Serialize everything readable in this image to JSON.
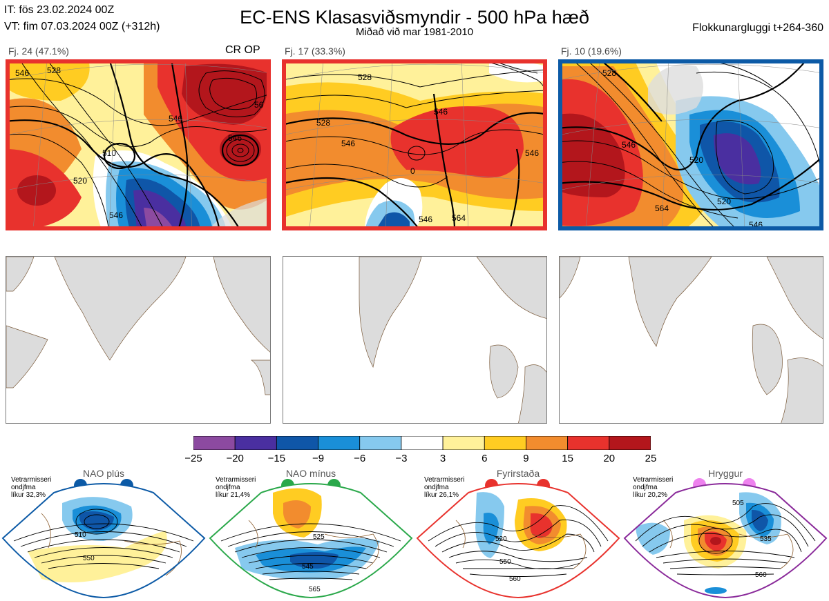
{
  "header": {
    "it_line": "IT: fös 23.02.2024 00Z",
    "vt_line": "VT: fim 07.03.2024 00Z  (+312h)",
    "title": "EC-ENS Klasasviðsmyndir - 500 hPa hæð",
    "subtitle": "Miðað við mar 1981-2010",
    "window": "Flokkunargluggi t+264-360"
  },
  "clusters": [
    {
      "label": "Fj. 24 (47.1%)",
      "border_color": "#e8322d",
      "flag": "CR OP",
      "contour_labels": [
        "528",
        "546",
        "510",
        "520",
        "546",
        "546",
        "546",
        "56"
      ]
    },
    {
      "label": "Fj. 17 (33.3%)",
      "border_color": "#e8322d",
      "flag": "",
      "contour_labels": [
        "528",
        "546",
        "528",
        "546",
        "546",
        "546",
        "564",
        "0"
      ]
    },
    {
      "label": "Fj. 10 (19.6%)",
      "border_color": "#0c5aa6",
      "flag": "",
      "contour_labels": [
        "528",
        "546",
        "520",
        "520",
        "564",
        "546"
      ]
    }
  ],
  "colorbar": {
    "ticks": [
      "−25",
      "−20",
      "−15",
      "−9",
      "−6",
      "−3",
      "3",
      "6",
      "9",
      "15",
      "20",
      "25"
    ],
    "colors": [
      "#8c4aa0",
      "#4a2fa0",
      "#0f56a8",
      "#1a8fd8",
      "#86c9ee",
      "#ffffff",
      "#fff19a",
      "#ffcc22",
      "#f28c2e",
      "#e8322d",
      "#b3161c"
    ]
  },
  "regimes": [
    {
      "name": "NAO plús",
      "note_line1": "Vetrarmisseri",
      "note_line2": "ondjfma",
      "note_line3": "líkur 32,3%",
      "color": "#0c5aa6",
      "contour_labels": [
        "510",
        "550"
      ]
    },
    {
      "name": "NAO mínus",
      "note_line1": "Vetrarmisseri",
      "note_line2": "ondjfma",
      "note_line3": "líkur 21,4%",
      "color": "#2aa84a",
      "contour_labels": [
        "525",
        "545",
        "565"
      ]
    },
    {
      "name": "Fyrirstaða",
      "note_line1": "Vetrarmisseri",
      "note_line2": "ondjfma",
      "note_line3": "líkur 26,1%",
      "color": "#e8322d",
      "contour_labels": [
        "520",
        "550",
        "560"
      ]
    },
    {
      "name": "Hryggur",
      "note_line1": "Vetrarmisseri",
      "note_line2": "ondjfma",
      "note_line3": "líkur 20,2%",
      "color": "#8a2a9a",
      "contour_labels": [
        "505",
        "535",
        "560"
      ]
    }
  ]
}
